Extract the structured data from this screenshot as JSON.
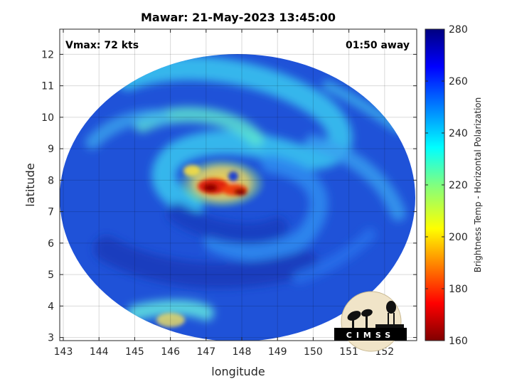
{
  "chart_data": {
    "type": "heatmap",
    "title": "Mawar: 21-May-2023 13:45:00",
    "xlabel": "longitude",
    "ylabel": "latitude",
    "xlim": [
      142.9,
      152.9
    ],
    "ylim": [
      2.9,
      12.8
    ],
    "xticks": [
      143,
      144,
      145,
      146,
      147,
      148,
      149,
      150,
      151,
      152
    ],
    "yticks": [
      3,
      4,
      5,
      6,
      7,
      8,
      9,
      10,
      11,
      12
    ],
    "grid": true,
    "annotations": {
      "vmax": "Vmax: 72 kts",
      "time_offset": "01:50 away"
    },
    "storm_center": {
      "lon": 147.9,
      "lat": 8.0
    },
    "colorbar": {
      "label": "Brightness Temp - Horizontal Polarization",
      "range": [
        160,
        280
      ],
      "ticks": [
        160,
        180,
        200,
        220,
        240,
        260,
        280
      ],
      "colormap": "jet"
    },
    "logo_text": "CIMSS"
  }
}
